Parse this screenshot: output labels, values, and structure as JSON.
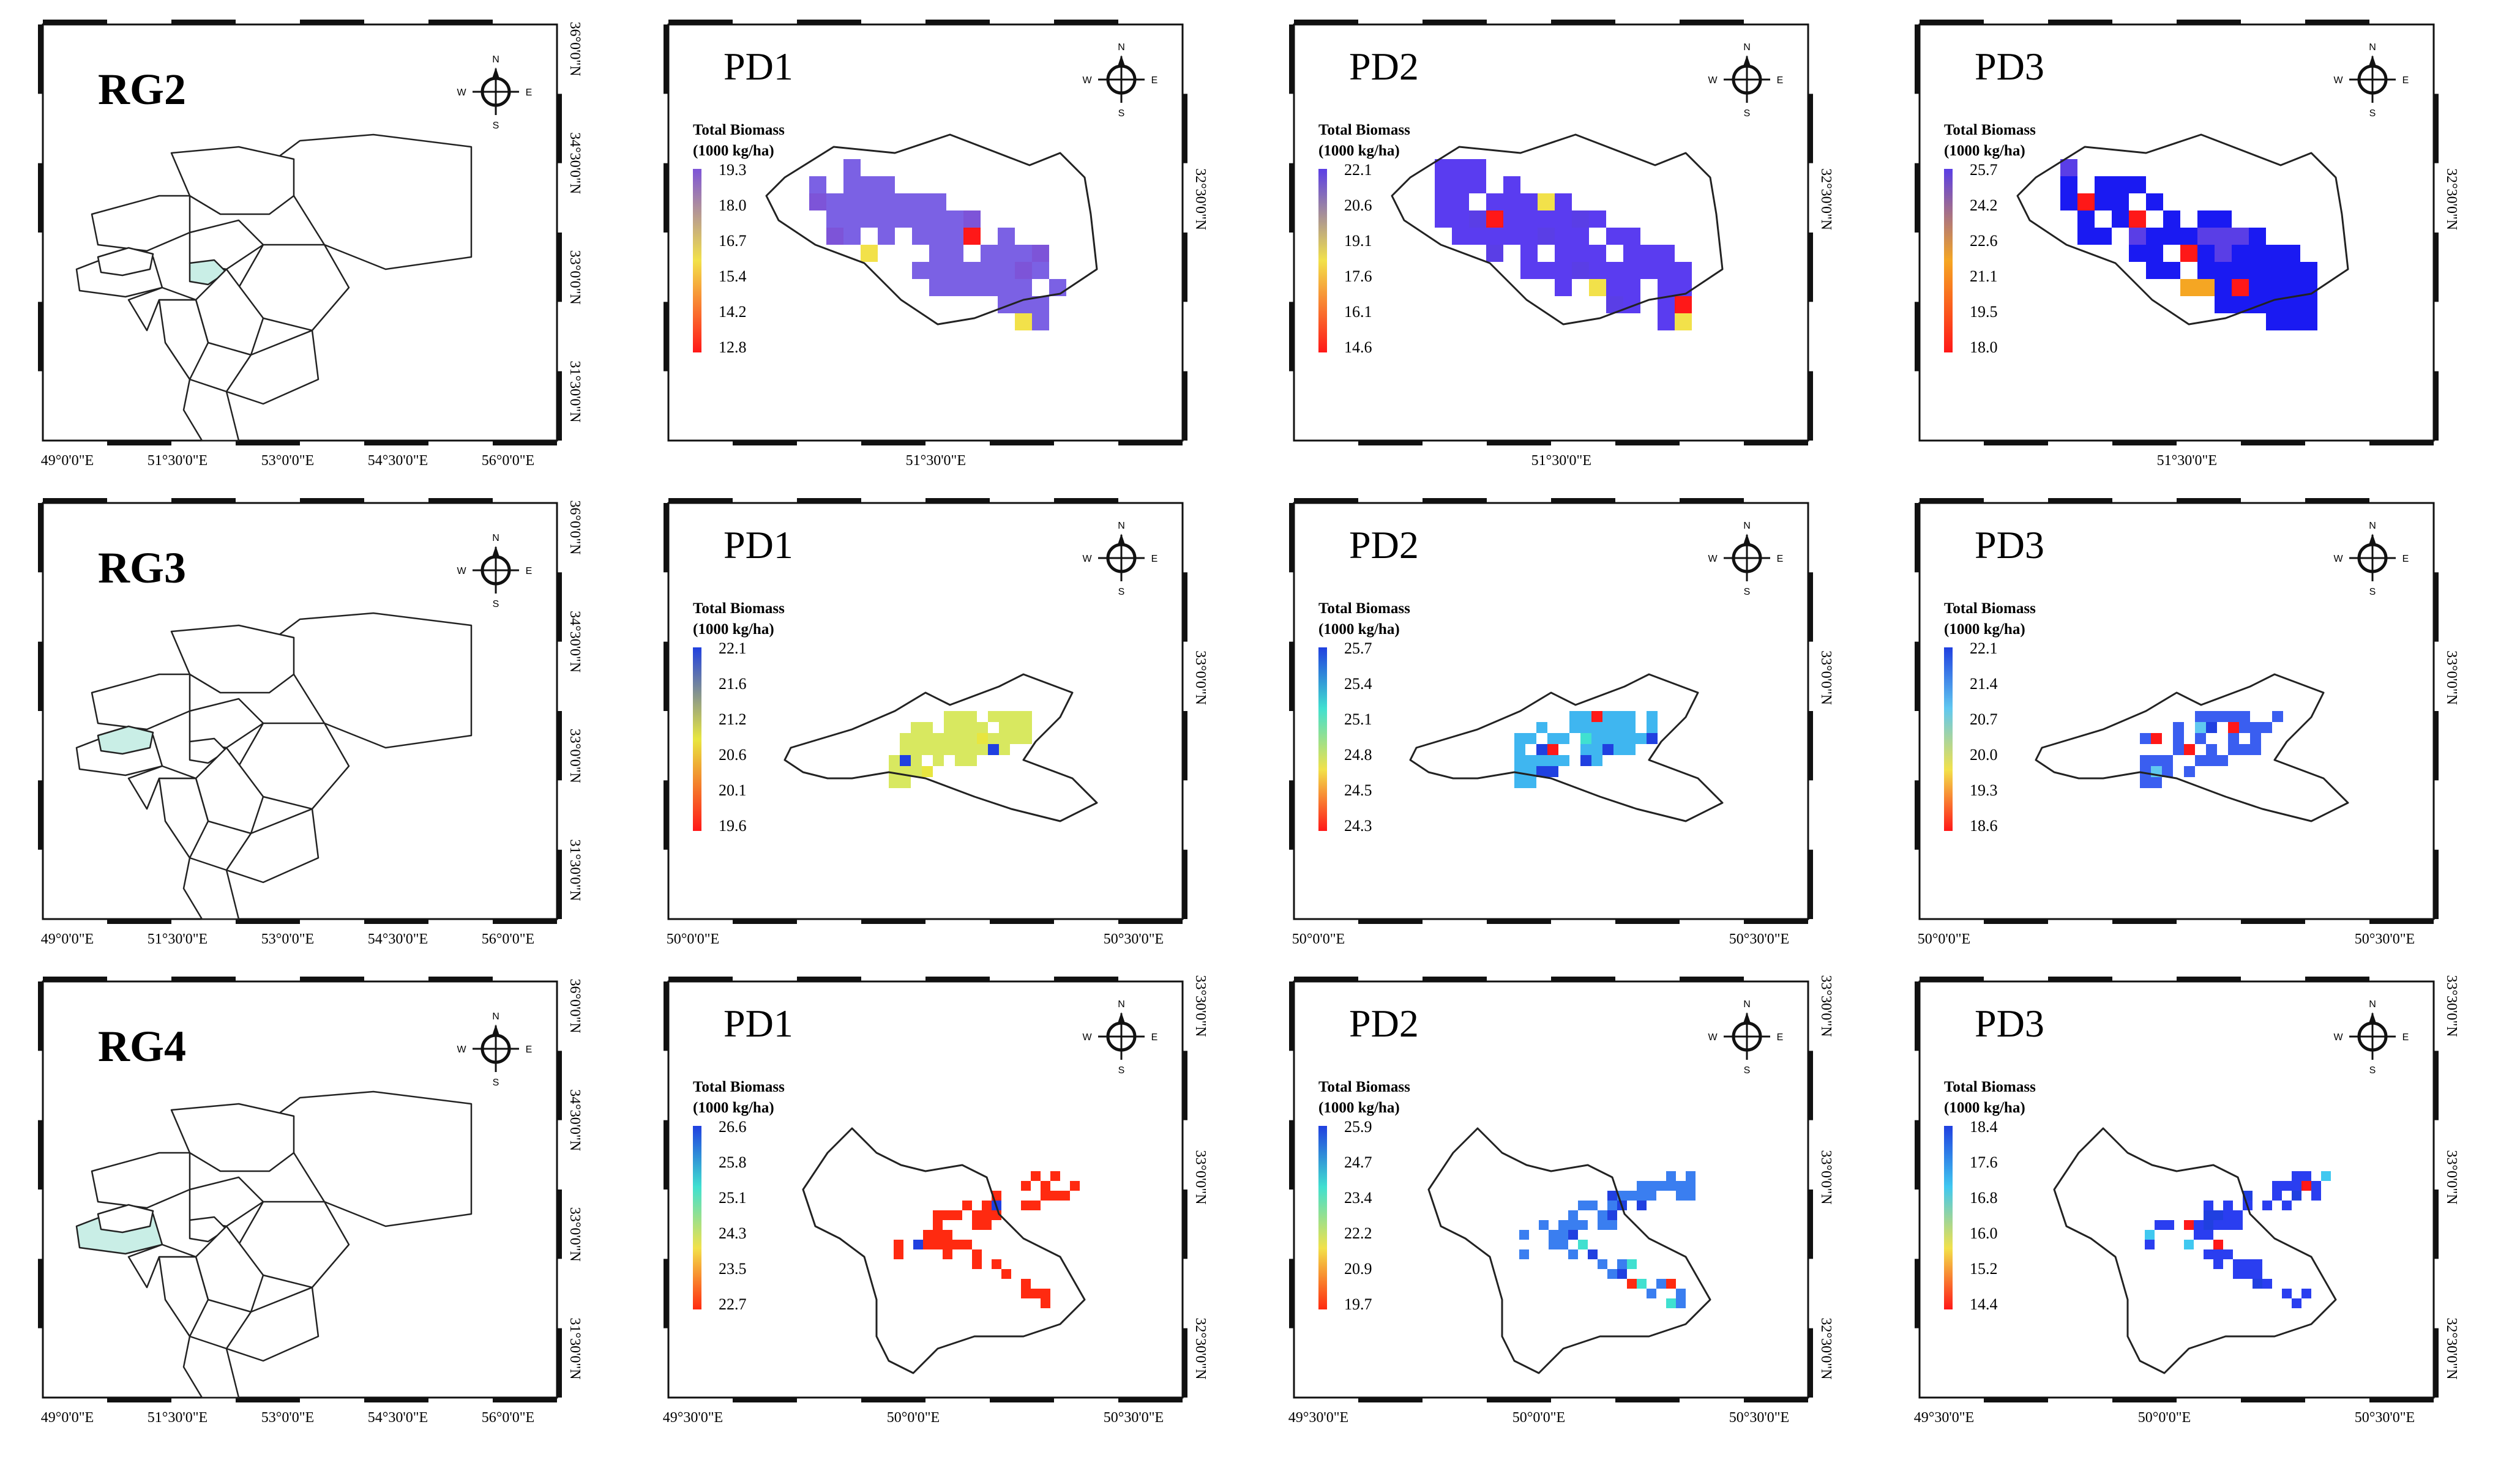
{
  "rows": [
    {
      "row_id": "rg2",
      "region": {
        "title": "RG2",
        "bottom_ticks": [
          "49°0'0\"E",
          "51°30'0\"E",
          "53°0'0\"E",
          "54°30'0\"E",
          "56°0'0\"E"
        ],
        "right_ticks": [
          "36°0'0\"N",
          "34°30'0\"N",
          "33°0'0\"N",
          "31°30'0\"N"
        ],
        "highlight": "rg2"
      },
      "maps": [
        {
          "title": "PD1",
          "legend_title_1": "Total Biomass",
          "legend_title_2": "(1000 kg/ha)",
          "ticks": [
            "19.3",
            "18.0",
            "16.7",
            "15.4",
            "14.2",
            "12.8"
          ],
          "ramp": [
            "#7d54d8",
            "#f2e14a",
            "#ff1818"
          ],
          "base_color": "#7b61e4",
          "bottom_ticks": [
            "51°30'0\"E"
          ],
          "right_ticks": [
            "32°30'0\"N"
          ]
        },
        {
          "title": "PD2",
          "legend_title_1": "Total Biomass",
          "legend_title_2": "(1000 kg/ha)",
          "ticks": [
            "22.1",
            "20.6",
            "19.1",
            "17.6",
            "16.1",
            "14.6"
          ],
          "ramp": [
            "#5a3ee6",
            "#f2e14a",
            "#ff1818"
          ],
          "base_color": "#5a3cf0",
          "bottom_ticks": [
            "51°30'0\"E"
          ],
          "right_ticks": [
            "32°30'0\"N"
          ]
        },
        {
          "title": "PD3",
          "legend_title_1": "Total Biomass",
          "legend_title_2": "(1000 kg/ha)",
          "ticks": [
            "25.7",
            "24.2",
            "22.6",
            "21.1",
            "19.5",
            "18.0"
          ],
          "ramp": [
            "#5a3ee6",
            "#f5a623",
            "#ff1818"
          ],
          "base_color": "#1a1af2",
          "bottom_ticks": [
            "51°30'0\"E"
          ],
          "right_ticks": [
            "32°30'0\"N"
          ]
        }
      ]
    },
    {
      "row_id": "rg3",
      "region": {
        "title": "RG3",
        "bottom_ticks": [
          "49°0'0\"E",
          "51°30'0\"E",
          "53°0'0\"E",
          "54°30'0\"E",
          "56°0'0\"E"
        ],
        "right_ticks": [
          "36°0'0\"N",
          "34°30'0\"N",
          "33°0'0\"N",
          "31°30'0\"N"
        ],
        "highlight": "rg3"
      },
      "maps": [
        {
          "title": "PD1",
          "legend_title_1": "Total Biomass",
          "legend_title_2": "(1000 kg/ha)",
          "ticks": [
            "22.1",
            "21.6",
            "21.2",
            "20.6",
            "20.1",
            "19.6"
          ],
          "ramp": [
            "#2040e0",
            "#e8e640",
            "#ff1818"
          ],
          "base_color": "#d8e860",
          "bottom_ticks": [
            "50°0'0\"E",
            "50°30'0\"E"
          ],
          "right_ticks": [
            "33°0'0\"N"
          ]
        },
        {
          "title": "PD2",
          "legend_title_1": "Total Biomass",
          "legend_title_2": "(1000 kg/ha)",
          "ticks": [
            "25.7",
            "25.4",
            "25.1",
            "24.8",
            "24.5",
            "24.3"
          ],
          "ramp": [
            "#2040e0",
            "#40e0d0",
            "#f2e14a",
            "#ff1818"
          ],
          "base_color": "#3fb6f0",
          "bottom_ticks": [
            "50°0'0\"E",
            "50°30'0\"E"
          ],
          "right_ticks": [
            "33°0'0\"N"
          ]
        },
        {
          "title": "PD3",
          "legend_title_1": "Total Biomass",
          "legend_title_2": "(1000 kg/ha)",
          "ticks": [
            "22.1",
            "21.4",
            "20.7",
            "20.0",
            "19.3",
            "18.6"
          ],
          "ramp": [
            "#2040e0",
            "#60c8f0",
            "#f2e14a",
            "#ff1818"
          ],
          "base_color": "#3a5ef0",
          "bottom_ticks": [
            "50°0'0\"E",
            "50°30'0\"E"
          ],
          "right_ticks": [
            "33°0'0\"N"
          ]
        }
      ]
    },
    {
      "row_id": "rg4",
      "region": {
        "title": "RG4",
        "bottom_ticks": [
          "49°0'0\"E",
          "51°30'0\"E",
          "53°0'0\"E",
          "54°30'0\"E",
          "56°0'0\"E"
        ],
        "right_ticks": [
          "36°0'0\"N",
          "34°30'0\"N",
          "33°0'0\"N",
          "31°30'0\"N"
        ],
        "highlight": "rg4"
      },
      "maps": [
        {
          "title": "PD1",
          "legend_title_1": "Total Biomass",
          "legend_title_2": "(1000 kg/ha)",
          "ticks": [
            "26.6",
            "25.8",
            "25.1",
            "24.3",
            "23.5",
            "22.7"
          ],
          "ramp": [
            "#2040e0",
            "#40e0d0",
            "#f2e14a",
            "#ff2a10"
          ],
          "base_color": "#ff2a10",
          "bottom_ticks": [
            "49°30'0\"E",
            "50°0'0\"E",
            "50°30'0\"E"
          ],
          "right_ticks": [
            "33°30'0\"N",
            "33°0'0\"N",
            "32°30'0\"N"
          ]
        },
        {
          "title": "PD2",
          "legend_title_1": "Total Biomass",
          "legend_title_2": "(1000 kg/ha)",
          "ticks": [
            "25.9",
            "24.7",
            "23.4",
            "22.2",
            "20.9",
            "19.7"
          ],
          "ramp": [
            "#2040e0",
            "#40e0d0",
            "#f2e14a",
            "#ff2a10"
          ],
          "base_color": "#3a7ef0",
          "bottom_ticks": [
            "49°30'0\"E",
            "50°0'0\"E",
            "50°30'0\"E"
          ],
          "right_ticks": [
            "33°30'0\"N",
            "33°0'0\"N",
            "32°30'0\"N"
          ]
        },
        {
          "title": "PD3",
          "legend_title_1": "Total Biomass",
          "legend_title_2": "(1000 kg/ha)",
          "ticks": [
            "18.4",
            "17.6",
            "16.8",
            "16.0",
            "15.2",
            "14.4"
          ],
          "ramp": [
            "#2040e0",
            "#40c8f0",
            "#f2e14a",
            "#ff1818"
          ],
          "base_color": "#2a3ef0",
          "bottom_ticks": [
            "49°30'0\"E",
            "50°0'0\"E",
            "50°30'0\"E"
          ],
          "right_ticks": [
            "33°30'0\"N",
            "33°0'0\"N",
            "32°30'0\"N"
          ]
        }
      ]
    }
  ],
  "compass": {
    "n": "N",
    "e": "E",
    "s": "S",
    "w": "W"
  },
  "icons": [
    "compass-rose-icon"
  ]
}
